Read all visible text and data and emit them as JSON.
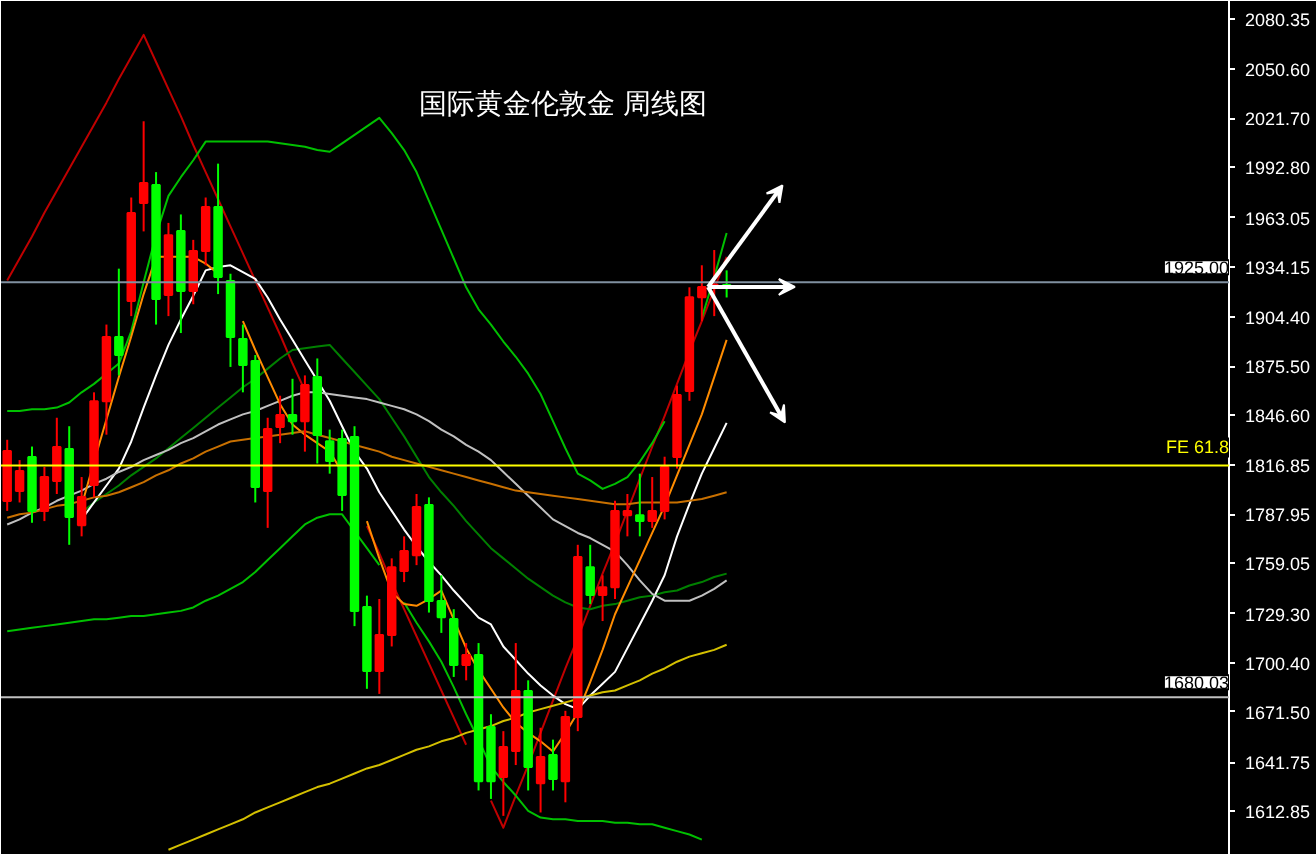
{
  "chart_data": {
    "type": "candlestick",
    "title": "国际黄金伦敦金  周线图",
    "categories": [
      null,
      null,
      null,
      null,
      null,
      null,
      null,
      null,
      null,
      null,
      null,
      null,
      null,
      null,
      null,
      null,
      null,
      null,
      null,
      null,
      null,
      null,
      null,
      null,
      null,
      null,
      null,
      null,
      null,
      null,
      null,
      null,
      null,
      null,
      null,
      null,
      null,
      null,
      null,
      null,
      null,
      null,
      null,
      null,
      null,
      null,
      null,
      null,
      null,
      null,
      null,
      null,
      null,
      null,
      null,
      null,
      null,
      null,
      null,
      null,
      null,
      null,
      null,
      null,
      null,
      null,
      null,
      null,
      null,
      null,
      null,
      null,
      null,
      null,
      null,
      null,
      null,
      null,
      null,
      null,
      null,
      null,
      null,
      null,
      null,
      null,
      null,
      null,
      null,
      null,
      null,
      null,
      null,
      null,
      null,
      null,
      null,
      null,
      null
    ],
    "ohlc": [
      [
        1795.8,
        1832,
        1790,
        1825.3
      ],
      [
        1801.7,
        1820,
        1795,
        1813.5
      ],
      [
        1821.8,
        1828,
        1783,
        1789.9
      ],
      [
        1789.9,
        1816,
        1784,
        1810.0
      ],
      [
        1807.6,
        1845,
        1800,
        1827.7
      ],
      [
        1826.5,
        1840,
        1770,
        1786.4
      ],
      [
        1781.6,
        1810,
        1775,
        1798.2
      ],
      [
        1805.3,
        1860,
        1798,
        1854.8
      ],
      [
        1854.8,
        1900,
        1835,
        1892.6
      ],
      [
        1892.6,
        1933,
        1870,
        1882.0
      ],
      [
        1913.9,
        1975,
        1905,
        1965.8
      ],
      [
        1971.7,
        2020,
        1955,
        1983.5
      ],
      [
        1982.4,
        1990,
        1900,
        1915.1
      ],
      [
        1917.4,
        1960,
        1905,
        1952.8
      ],
      [
        1955.2,
        1965,
        1895,
        1919.8
      ],
      [
        1919.8,
        1950,
        1912,
        1943.4
      ],
      [
        1943.4,
        1975,
        1935,
        1969.4
      ],
      [
        1969.4,
        1995,
        1918,
        1928.1
      ],
      [
        1925.7,
        1930,
        1875,
        1892.6
      ],
      [
        1891.5,
        1900,
        1860,
        1876.1
      ],
      [
        1878.5,
        1882,
        1795,
        1804.1
      ],
      [
        1801.7,
        1845,
        1780,
        1838.3
      ],
      [
        1839.5,
        1858,
        1830,
        1846.6
      ],
      [
        1846.6,
        1868,
        1835,
        1843.0
      ],
      [
        1843.0,
        1870,
        1825,
        1864.3
      ],
      [
        1869.0,
        1880,
        1818,
        1834.8
      ],
      [
        1831.2,
        1838,
        1812,
        1819.4
      ],
      [
        1832.4,
        1838,
        1790,
        1799.4
      ],
      [
        1833.6,
        1840,
        1722,
        1730.9
      ],
      [
        1733.3,
        1740,
        1685,
        1695.5
      ],
      [
        1695.5,
        1738,
        1682,
        1716.8
      ],
      [
        1716.8,
        1762,
        1710,
        1756.8
      ],
      [
        1754.5,
        1775,
        1748,
        1766.3
      ],
      [
        1763.9,
        1800,
        1758,
        1792.3
      ],
      [
        1793.5,
        1798,
        1730,
        1736.8
      ],
      [
        1736.8,
        1752,
        1718,
        1727.3
      ],
      [
        1726.2,
        1732,
        1692,
        1699.0
      ],
      [
        1699.0,
        1712,
        1690,
        1705.0
      ],
      [
        1705.0,
        1712,
        1625,
        1630.5
      ],
      [
        1662.4,
        1670,
        1620,
        1630.5
      ],
      [
        1632.9,
        1660,
        1610,
        1650.6
      ],
      [
        1648.3,
        1712,
        1640,
        1683.7
      ],
      [
        1683.7,
        1690,
        1625,
        1638.8
      ],
      [
        1629.3,
        1662,
        1612,
        1644.7
      ],
      [
        1645.9,
        1655,
        1625,
        1631.7
      ],
      [
        1630.5,
        1672,
        1618,
        1668.3
      ],
      [
        1668.3,
        1770,
        1660,
        1762.8
      ],
      [
        1756.8,
        1770,
        1735,
        1740.3
      ],
      [
        1740.3,
        1752,
        1725,
        1745.0
      ],
      [
        1745.0,
        1796,
        1738,
        1789.9
      ],
      [
        1787.5,
        1800,
        1775,
        1789.9
      ],
      [
        1787.5,
        1812,
        1775,
        1784.0
      ],
      [
        1784.0,
        1810,
        1780,
        1789.9
      ],
      [
        1789.9,
        1822,
        1785,
        1815.9
      ],
      [
        1821.8,
        1864,
        1815,
        1858.4
      ],
      [
        1860.8,
        1922,
        1855,
        1916.2
      ],
      [
        1916.2,
        1935,
        1902,
        1922.2
      ],
      [
        1922.2,
        1944,
        1905,
        1923.3
      ],
      [
        1923.3,
        1932,
        1916,
        1922.2
      ],
      null,
      null,
      null,
      null,
      null,
      null,
      null,
      null,
      null,
      null,
      null,
      null,
      null,
      null,
      null,
      null,
      null,
      null,
      null,
      null,
      null,
      null,
      null,
      null,
      null,
      null,
      null,
      null,
      null,
      null,
      null,
      null,
      null,
      null,
      null,
      null,
      null,
      null,
      null,
      null
    ],
    "colors": [
      "#ff0000",
      "#ff0000",
      "#00ff00",
      "#ff0000",
      "#ff0000",
      "#00ff00",
      "#ff0000",
      "#ff0000",
      "#ff0000",
      "#00ff00",
      "#ff0000",
      "#ff0000",
      "#00ff00",
      "#ff0000",
      "#00ff00",
      "#ff0000",
      "#ff0000",
      "#00ff00",
      "#00ff00",
      "#00ff00",
      "#00ff00",
      "#ff0000",
      "#ff0000",
      "#00ff00",
      "#ff0000",
      "#00ff00",
      "#00ff00",
      "#00ff00",
      "#00ff00",
      "#00ff00",
      "#ff0000",
      "#ff0000",
      "#ff0000",
      "#ff0000",
      "#00ff00",
      "#00ff00",
      "#00ff00",
      "#ff0000",
      "#00ff00",
      "#00ff00",
      "#ff0000",
      "#ff0000",
      "#00ff00",
      "#ff0000",
      "#00ff00",
      "#ff0000",
      "#ff0000",
      "#00ff00",
      "#ff0000",
      "#ff0000",
      "#ff0000",
      "#00ff00",
      "#ff0000",
      "#ff0000",
      "#ff0000",
      "#ff0000",
      "#ff0000",
      "#ff0000",
      "#00ff00",
      null,
      null,
      null,
      null,
      null,
      null,
      null,
      null,
      null,
      null,
      null,
      null,
      null,
      null,
      null,
      null,
      null,
      null,
      null,
      null,
      null,
      null,
      null,
      null,
      null,
      null,
      null,
      null,
      null,
      null,
      null,
      null,
      null,
      null,
      null,
      null,
      null,
      null,
      null,
      null
    ],
    "series": [
      {
        "type": "line",
        "color": "#c00000",
        "values": [
          1926,
          1939,
          1952,
          1966,
          1979,
          1992,
          2005,
          2018,
          2031,
          2045,
          2058,
          2071,
          2055,
          2039,
          2023,
          2006,
          1990,
          1974,
          1958,
          1942,
          1926,
          1910,
          1894,
          1877,
          1861,
          null,
          null,
          null,
          null,
          1781,
          1765,
          1748,
          1732,
          1716,
          1700,
          1684,
          1668,
          1652,
          null,
          1619,
          1603,
          1622,
          1640,
          1659,
          1678,
          1697,
          1715,
          1734,
          1753,
          1771,
          1790,
          1809,
          1828,
          1846,
          1865,
          1884,
          1902,
          1921,
          1940,
          null,
          null,
          null,
          null,
          null,
          null,
          null,
          null,
          null,
          null,
          null,
          null,
          null,
          null,
          null,
          null,
          null,
          null,
          null,
          null,
          null,
          null,
          null,
          null,
          null,
          null,
          null,
          null,
          null,
          null,
          null,
          null,
          null,
          null,
          null,
          null,
          null,
          null,
          null,
          null
        ]
      },
      {
        "type": "line",
        "color": "#00c000",
        "values": [
          1849,
          1849,
          1850,
          1850,
          1851,
          1854,
          1860,
          1865,
          1871,
          1877,
          1896,
          1925,
          1953,
          1976,
          1987,
          1997,
          2008,
          2008,
          2008,
          2008,
          2008,
          2008,
          2007,
          2006,
          2005,
          2003,
          2002,
          2007,
          2012,
          2017,
          2022,
          2013,
          2003,
          1990,
          1973,
          1956,
          1939,
          1922,
          1909,
          1900,
          1890,
          1881,
          1871,
          1859,
          1843,
          1827,
          1812,
          1808,
          1803,
          1806,
          1810,
          1819,
          1830,
          1843,
          null,
          null,
          1904,
          1928,
          1954,
          null,
          null,
          null,
          null,
          null,
          null,
          null,
          null,
          null,
          null,
          null,
          null,
          null,
          null,
          null,
          null,
          null,
          null,
          null,
          null,
          null,
          null,
          null,
          null,
          null,
          null,
          null,
          null,
          null,
          null,
          null,
          null,
          null,
          null,
          null,
          null,
          null,
          null,
          null,
          null
        ]
      },
      {
        "type": "line",
        "color": "#00c000",
        "values": [
          1719,
          1720,
          1721,
          1722,
          1723,
          1724,
          1725,
          1726,
          1726,
          1727,
          1728,
          1728,
          1729,
          1730,
          1731,
          1733,
          1737,
          1740,
          1744,
          1748,
          1754,
          1761,
          1768,
          1775,
          1782,
          1786,
          1788,
          1788,
          1778,
          1768,
          1758,
          null,
          1736,
          1724,
          1713,
          1701,
          1686,
          1670,
          1655,
          1639,
          1630,
          1622,
          1613,
          1609,
          1608,
          1608,
          1607,
          1607,
          1607,
          1606,
          1606,
          1605,
          1605,
          1603,
          1601,
          1599,
          1596,
          null,
          null,
          null,
          null,
          null,
          null,
          null,
          null,
          null,
          null,
          null,
          null,
          null,
          null,
          null,
          null,
          null,
          null,
          null,
          null,
          null,
          null,
          null,
          null,
          null,
          null,
          null,
          null,
          null,
          null,
          null,
          null,
          null,
          null,
          null,
          null,
          null,
          null,
          null,
          null,
          null,
          null
        ]
      },
      {
        "type": "line",
        "color": "#008000",
        "values": [
          null,
          null,
          null,
          null,
          null,
          null,
          1789,
          1795,
          1800,
          1805,
          1811,
          1816,
          1821,
          1827,
          1833,
          1839,
          1845,
          1851,
          1857,
          1863,
          1868,
          1874,
          1880,
          1885,
          1886,
          1887,
          1888,
          1880,
          1872,
          1864,
          1856,
          1845,
          1834,
          1822,
          1810,
          1801,
          1793,
          1784,
          1776,
          1768,
          1762,
          1756,
          1750,
          1745,
          1740,
          1736,
          1733,
          1732,
          1734,
          1735,
          1737,
          1739,
          1740,
          1742,
          1743,
          1746,
          1748,
          1751,
          1753,
          null,
          null,
          null,
          null,
          null,
          null,
          null,
          null,
          null,
          null,
          null,
          null,
          null,
          null,
          null,
          null,
          null,
          null,
          null,
          null,
          null,
          null,
          null,
          null,
          null,
          null,
          null,
          null,
          null,
          null,
          null,
          null,
          null,
          null,
          null,
          null,
          null,
          null,
          null,
          null
        ]
      },
      {
        "type": "line",
        "color": "#ffffff",
        "values": [
          null,
          null,
          null,
          null,
          null,
          null,
          1785,
          1795,
          1805,
          1815,
          1831,
          1851,
          1870,
          1888,
          1903,
          1917,
          1932,
          1934,
          1935,
          1931,
          1927,
          1916,
          1903,
          1891,
          1879,
          1867,
          1855,
          1840,
          1825,
          1815,
          1801,
          1790,
          1779,
          1769,
          1760,
          1752,
          1743,
          1735,
          1727,
          1723,
          1710,
          1702,
          1694,
          1687,
          1681,
          1676,
          1673,
          1681,
          1688,
          1695,
          1709,
          1723,
          1737,
          1752,
          1775,
          1794,
          1812,
          1827,
          1842,
          null,
          null,
          null,
          null,
          null,
          null,
          null,
          null,
          null,
          null,
          null,
          null,
          null,
          null,
          null,
          null,
          null,
          null,
          null,
          null,
          null,
          null,
          null,
          null,
          null,
          null,
          null,
          null,
          null,
          null,
          null,
          null,
          null,
          null,
          null,
          null,
          null,
          null,
          null,
          null
        ]
      },
      {
        "type": "line",
        "color": "#c0c0c0",
        "values": [
          1782,
          1785,
          1789,
          1792,
          1796,
          1799,
          1802,
          1806,
          1809,
          1813,
          1816,
          1820,
          1823,
          1826,
          1830,
          1833,
          1837,
          1841,
          1844,
          1847,
          1849,
          1852,
          1855,
          1858,
          1860,
          1860,
          1859,
          1858,
          1857,
          1856,
          1854,
          1852,
          1850,
          1847,
          1843,
          1838,
          1834,
          1829,
          1825,
          1820,
          1813,
          1806,
          1799,
          1792,
          1785,
          1781,
          1777,
          1774,
          1770,
          1766,
          1758,
          1749,
          1741,
          1737,
          1737,
          1737,
          1740,
          1744,
          1749,
          null,
          null,
          null,
          null,
          null,
          null,
          null,
          null,
          null,
          null,
          null,
          null,
          null,
          null,
          null,
          null,
          null,
          null,
          null,
          null,
          null,
          null,
          null,
          null,
          null,
          null,
          null,
          null,
          null,
          null,
          null,
          null,
          null,
          null,
          null,
          null,
          null,
          null,
          null,
          null
        ]
      },
      {
        "type": "line",
        "color": "#ff8c00",
        "values": [
          null,
          null,
          null,
          null,
          null,
          null,
          1793,
          1819,
          1844,
          1869,
          1893,
          1918,
          1940,
          1940,
          1940,
          1940,
          1936,
          1930,
          null,
          1902,
          1885,
          1869,
          1853,
          1841,
          1835,
          1830,
          1825,
          1813,
          null,
          1784,
          1762,
          1742,
          1735,
          1734,
          1738,
          1743,
          1726,
          1709,
          1696,
          1685,
          1674,
          1665,
          1659,
          1654,
          1648,
          1659,
          1671,
          1689,
          1708,
          1729,
          1745,
          1761,
          1777,
          1793,
          1811,
          1829,
          1847,
          1869,
          1891,
          null,
          null,
          null,
          null,
          null,
          null,
          null,
          null,
          null,
          null,
          null,
          null,
          null,
          null,
          null,
          null,
          null,
          null,
          null,
          null,
          null,
          null,
          null,
          null,
          null,
          null,
          null,
          null,
          null,
          null,
          null,
          null,
          null,
          null,
          null,
          null,
          null,
          null,
          null,
          null
        ]
      },
      {
        "type": "line",
        "color": "#c87000",
        "values": [
          1786,
          1788,
          1789,
          1791,
          1793,
          1794,
          1796,
          1798,
          1799,
          1801,
          1804,
          1807,
          1811,
          1814,
          1818,
          1821,
          1825,
          1828,
          1831,
          1832,
          1833,
          1834,
          1835,
          1836,
          1837,
          1835,
          1833,
          1831,
          1829,
          1827,
          1825,
          1822,
          1820,
          1818,
          1816,
          1814,
          1812,
          1810,
          1808,
          1806,
          1804,
          1802,
          1801,
          1800,
          1799,
          1798,
          1797,
          1796,
          1795,
          1794,
          1794,
          1795,
          1795,
          1795,
          1795,
          1796,
          1797,
          1799,
          1801,
          null,
          null,
          null,
          null,
          null,
          null,
          null,
          null,
          null,
          null,
          null,
          null,
          null,
          null,
          null,
          null,
          null,
          null,
          null,
          null,
          null,
          null,
          null,
          null,
          null,
          null,
          null,
          null,
          null,
          null,
          null,
          null,
          null,
          null,
          null,
          null,
          null,
          null,
          null,
          null
        ]
      },
      {
        "type": "line",
        "color": "#d4c000",
        "values": [
          null,
          null,
          null,
          null,
          null,
          null,
          null,
          null,
          null,
          null,
          null,
          null,
          null,
          1590,
          1593,
          1596,
          1599,
          1602,
          1605,
          1608,
          1612,
          1615,
          1618,
          1621,
          1624,
          1627,
          1629,
          1632,
          1635,
          1638,
          1640,
          1643,
          1646,
          1649,
          1651,
          1654,
          1656,
          1659,
          1661,
          1663,
          1666,
          1668,
          1671,
          1673,
          1675,
          1677,
          1679,
          1681,
          1683,
          1684,
          1687,
          1690,
          1694,
          1697,
          1701,
          1704,
          1706,
          1708,
          1711,
          null,
          null,
          null,
          null,
          null,
          null,
          null,
          null,
          null,
          null,
          null,
          null,
          null,
          null,
          null,
          null,
          null,
          null,
          null,
          null,
          null,
          null,
          null,
          null,
          null,
          null,
          null,
          null,
          null,
          null,
          null,
          null,
          null,
          null,
          null,
          null,
          null,
          null,
          null,
          null
        ]
      }
    ],
    "ylim": [
      1586.9,
      2091.0
    ],
    "yticks": [
      {
        "value": 2080.35,
        "label": "2080.35"
      },
      {
        "value": 2050.6,
        "label": "2050.60"
      },
      {
        "value": 2021.7,
        "label": "2021.70"
      },
      {
        "value": 1992.8,
        "label": "1992.80"
      },
      {
        "value": 1963.05,
        "label": "1963.05"
      },
      {
        "value": 1934.15,
        "label": "1934.15"
      },
      {
        "value": 1904.4,
        "label": "1904.40"
      },
      {
        "value": 1875.5,
        "label": "1875.50"
      },
      {
        "value": 1846.6,
        "label": "1846.60"
      },
      {
        "value": 1816.85,
        "label": "1816.85"
      },
      {
        "value": 1787.95,
        "label": "1787.95"
      },
      {
        "value": 1759.05,
        "label": "1759.05"
      },
      {
        "value": 1729.3,
        "label": "1729.30"
      },
      {
        "value": 1700.4,
        "label": "1700.40"
      },
      {
        "value": 1671.5,
        "label": "1671.50"
      },
      {
        "value": 1641.75,
        "label": "1641.75"
      },
      {
        "value": 1612.85,
        "label": "1612.85"
      }
    ],
    "tick_labels": "y",
    "ref_lines": [
      {
        "axis": "y",
        "value": 1925.0,
        "label": "1925.00",
        "color": "#8090a0"
      },
      {
        "axis": "y",
        "value": 1816.85,
        "label": "FE 61.8",
        "color": "#ffff00"
      },
      {
        "axis": "y",
        "value": 1680.03,
        "label": "1680.03",
        "color": "#c0c0c0"
      }
    ]
  }
}
